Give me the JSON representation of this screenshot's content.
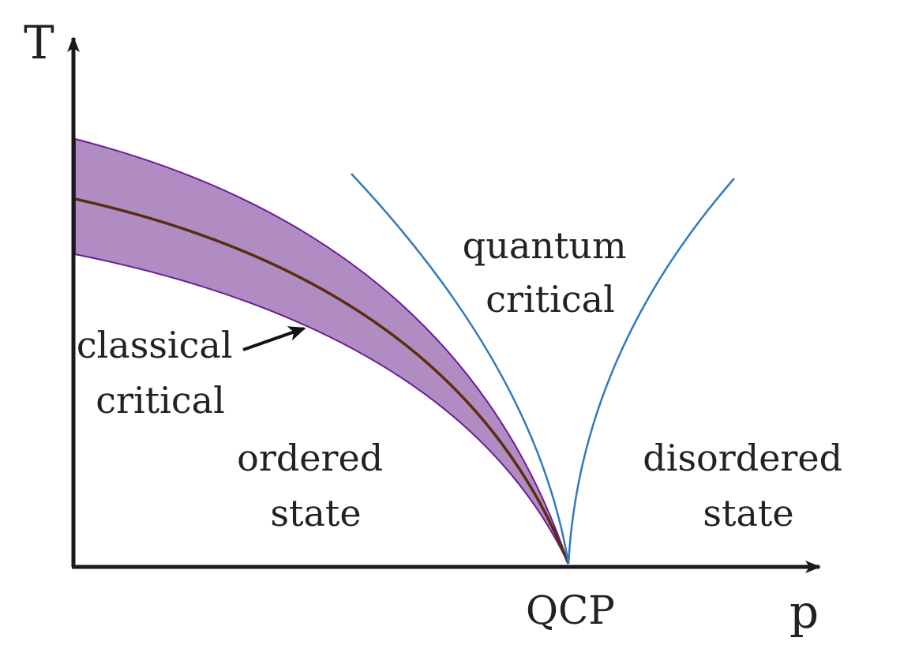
{
  "axes": {
    "y_label": "T",
    "x_label": "p"
  },
  "points": {
    "qcp_label": "QCP"
  },
  "regions": {
    "quantum_critical": [
      "quantum",
      "critical"
    ],
    "classical_critical": [
      "classical",
      "critical"
    ],
    "ordered": [
      "ordered",
      "state"
    ],
    "disordered": [
      "disordered",
      "state"
    ]
  },
  "colors": {
    "axis": "#1a1a1a",
    "band_fill": "#b08cc2",
    "band_edge": "#6a1b9a",
    "transition_line": "#5a2d0c",
    "crossover_line": "#2f7bbf",
    "arrow": "#111111",
    "text": "#222222",
    "background": "#ffffff"
  }
}
